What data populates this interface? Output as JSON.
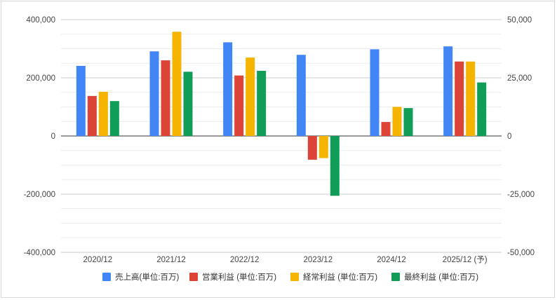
{
  "chart_data": {
    "type": "bar",
    "categories": [
      "2020/12",
      "2021/12",
      "2022/12",
      "2023/12",
      "2024/12",
      "2025/12 (予)"
    ],
    "series": [
      {
        "name": "売上高(単位:百万)",
        "axis": "left",
        "color": "#4285F4",
        "values": [
          241000,
          291000,
          322000,
          279000,
          298000,
          308000
        ]
      },
      {
        "name": "営業利益 (単位:百万)",
        "axis": "right",
        "color": "#DB4437",
        "values": [
          17200,
          32500,
          26000,
          -10200,
          6000,
          32000
        ]
      },
      {
        "name": "経常利益 (単位:百万)",
        "axis": "right",
        "color": "#F4B400",
        "values": [
          19000,
          44800,
          33700,
          -9500,
          12500,
          32000
        ]
      },
      {
        "name": "最終利益 (単位:百万)",
        "axis": "right",
        "color": "#0F9D58",
        "values": [
          15000,
          27600,
          28000,
          -25700,
          12000,
          23000
        ]
      }
    ],
    "y_left": {
      "ticks": [
        400000,
        200000,
        0,
        -200000,
        -400000
      ],
      "tick_labels": [
        "400,000",
        "200,000",
        "0",
        "-200,000",
        "-400,000"
      ],
      "ylim": [
        -400000,
        400000
      ]
    },
    "y_right": {
      "ticks": [
        50000,
        25000,
        0,
        -25000,
        -50000
      ],
      "tick_labels": [
        "50,000",
        "25,000",
        "0",
        "-25,000",
        "-50,000"
      ],
      "ylim": [
        -50000,
        50000
      ]
    },
    "grid": true,
    "legend_position": "bottom"
  }
}
